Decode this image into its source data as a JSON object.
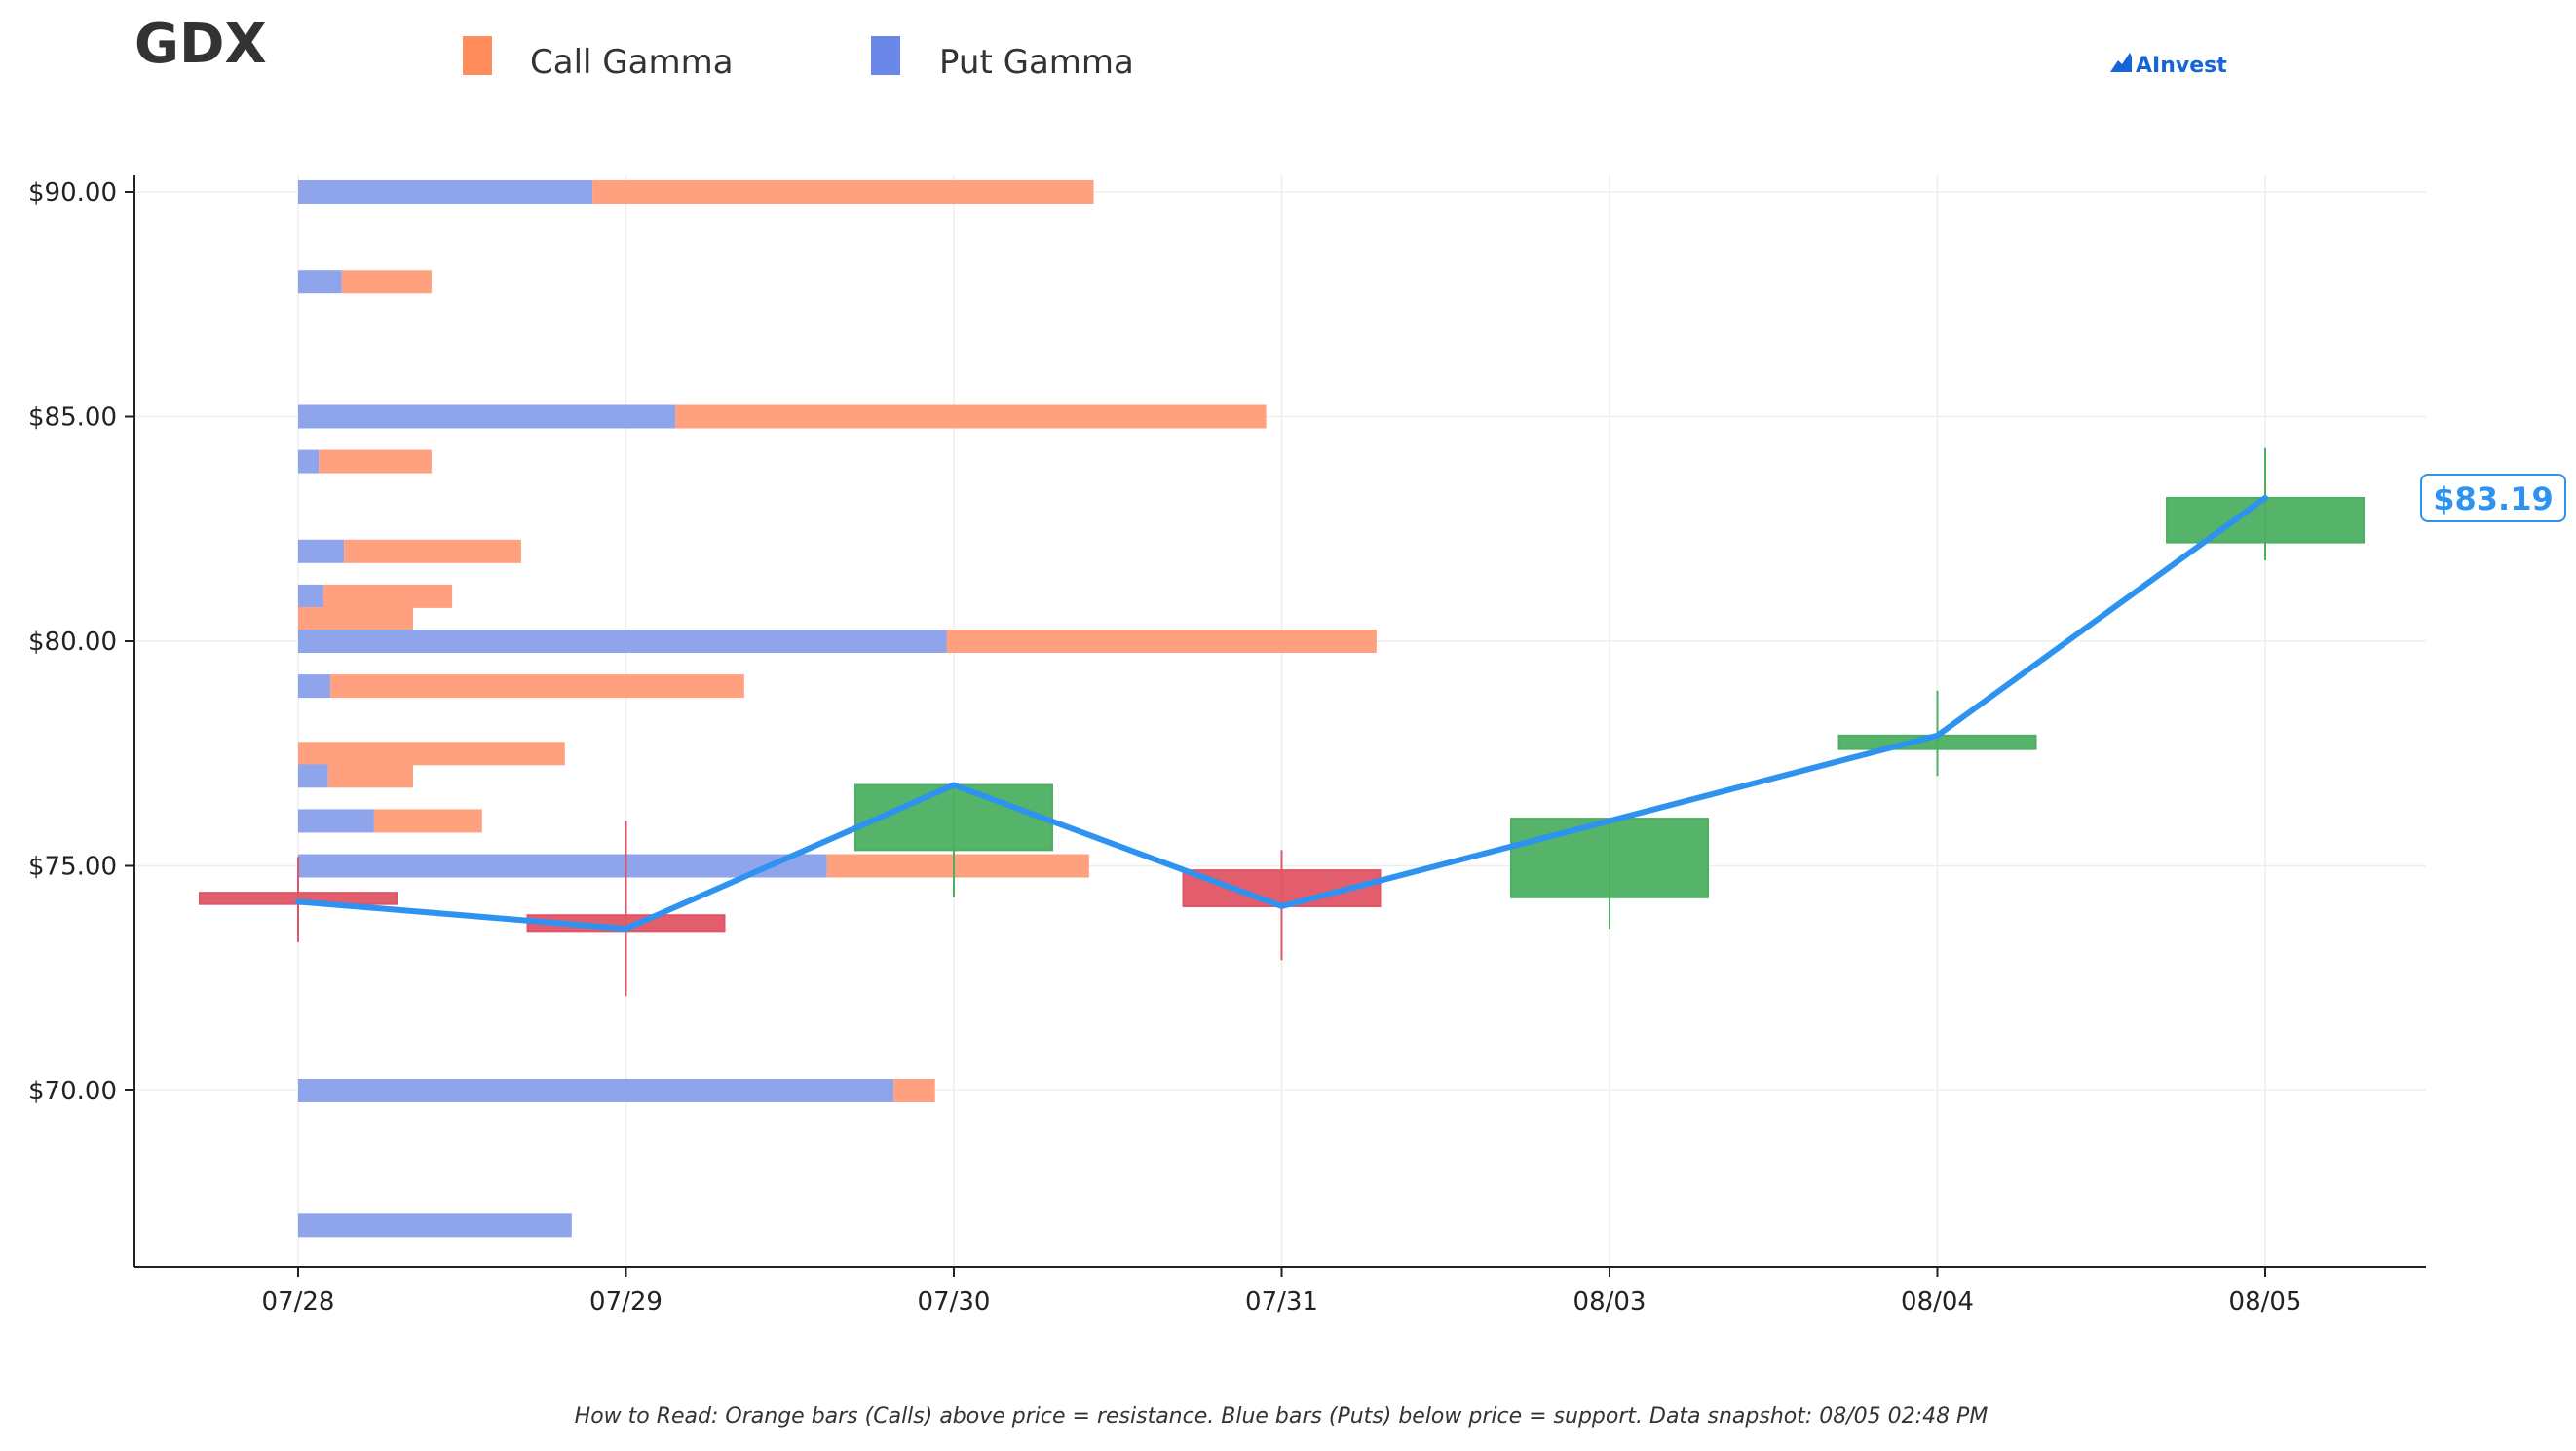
{
  "chart_data": {
    "type": "candlestick",
    "title": "GDX",
    "watermark": "AInvest",
    "footnote": "How to Read: Orange bars (Calls) above price = resistance. Blue bars (Puts) below price = support. Data snapshot: 08/05 02:48 PM",
    "legend": {
      "placement": "top",
      "entries": [
        {
          "label": "Call Gamma",
          "color": "#ff8c5a"
        },
        {
          "label": "Put Gamma",
          "color": "#6b87e8"
        }
      ]
    },
    "x": [
      "07/28",
      "07/29",
      "07/30",
      "07/31",
      "08/03",
      "08/04",
      "08/05"
    ],
    "y_ticks": [
      "$70.00",
      "$75.00",
      "$80.00",
      "$85.00",
      "$90.00"
    ],
    "ylim": [
      66.0,
      90.4
    ],
    "grid": true,
    "candles": [
      {
        "date": "07/28",
        "open": 74.4,
        "close": 74.15,
        "high": 75.2,
        "low": 73.3
      },
      {
        "date": "07/29",
        "open": 73.9,
        "close": 73.55,
        "high": 76.0,
        "low": 72.1
      },
      {
        "date": "07/30",
        "open": 75.35,
        "close": 76.8,
        "high": 76.8,
        "low": 74.3
      },
      {
        "date": "07/31",
        "open": 74.9,
        "close": 74.1,
        "high": 75.35,
        "low": 72.9
      },
      {
        "date": "08/03",
        "open": 74.3,
        "close": 76.05,
        "high": 76.05,
        "low": 73.6
      },
      {
        "date": "08/04",
        "open": 77.6,
        "close": 77.9,
        "high": 78.9,
        "low": 77.0
      },
      {
        "date": "08/05",
        "open": 82.2,
        "close": 83.19,
        "high": 84.3,
        "low": 81.8
      }
    ],
    "price_line": {
      "color": "#2e93f0",
      "values": [
        74.2,
        73.6,
        76.8,
        74.1,
        76.0,
        77.9,
        83.19
      ],
      "last_label": "$83.19"
    },
    "gamma_bars": [
      {
        "strike": 90.0,
        "put": 6.4,
        "call": 10.9
      },
      {
        "strike": 88.0,
        "put": 0.95,
        "call": 1.95
      },
      {
        "strike": 85.0,
        "put": 8.2,
        "call": 12.85
      },
      {
        "strike": 84.0,
        "put": 0.45,
        "call": 2.45
      },
      {
        "strike": 82.0,
        "put": 1.0,
        "call": 3.85
      },
      {
        "strike": 81.0,
        "put": 0.55,
        "call": 2.8
      },
      {
        "strike": 80.5,
        "put": 0,
        "call": 2.5
      },
      {
        "strike": 80.0,
        "put": 14.1,
        "call": 9.35
      },
      {
        "strike": 79.0,
        "put": 0.7,
        "call": 9.0
      },
      {
        "strike": 77.5,
        "put": 0,
        "call": 5.8
      },
      {
        "strike": 77.0,
        "put": 0.65,
        "call": 1.85
      },
      {
        "strike": 76.0,
        "put": 1.65,
        "call": 2.35
      },
      {
        "strike": 75.0,
        "put": 11.5,
        "call": 5.7
      },
      {
        "strike": 70.0,
        "put": 12.95,
        "call": 0.9
      },
      {
        "strike": 67.0,
        "put": 5.95,
        "call": 0
      }
    ],
    "colors": {
      "call": "#ffa07f",
      "put": "#8ea5ec",
      "up_candle": "#4caf62",
      "down_candle": "#e05565",
      "axis": "#222222",
      "grid": "#eeeeee",
      "title": "#333333",
      "watermark": "#1565d8"
    }
  }
}
